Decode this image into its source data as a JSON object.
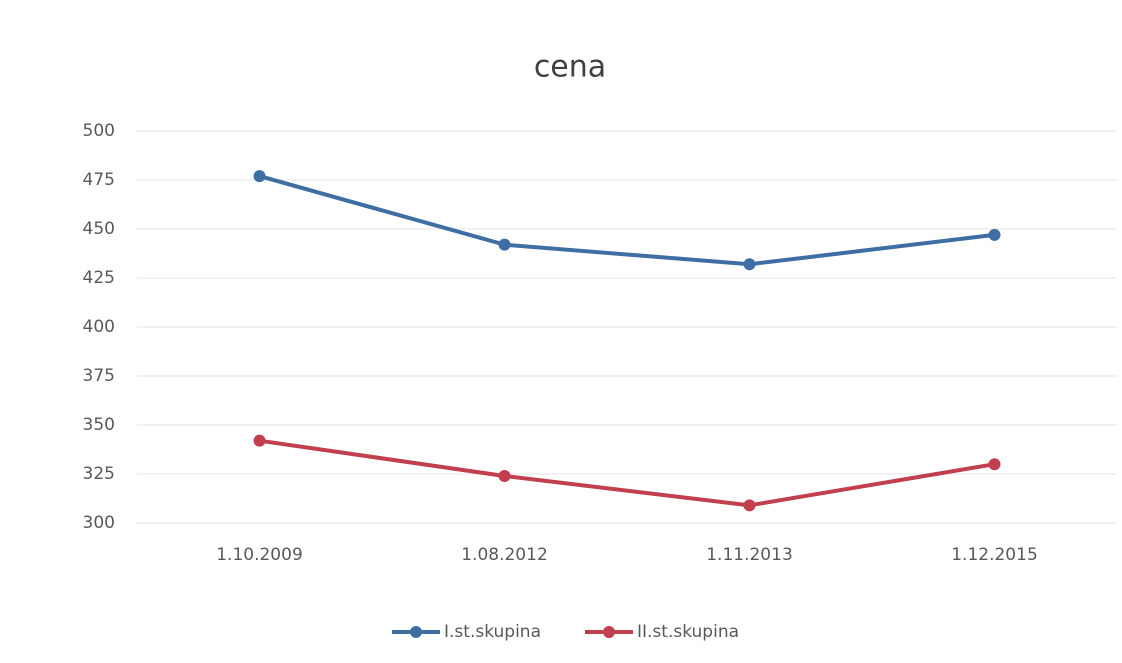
{
  "chart_data": {
    "type": "line",
    "title": "cena",
    "categories": [
      "1.10.2009",
      "1.08.2012",
      "1.11.2013",
      "1.12.2015"
    ],
    "series": [
      {
        "name": "I.st.skupina",
        "color": "#3e6ea3",
        "values": [
          477,
          442,
          432,
          447
        ]
      },
      {
        "name": "II.st.skupina",
        "color": "#c23f4e",
        "values": [
          342,
          324,
          309,
          330
        ]
      }
    ],
    "ylim": [
      300,
      500
    ],
    "yticks": [
      300,
      325,
      350,
      375,
      400,
      425,
      450,
      475,
      500
    ],
    "grid": true,
    "legend": "bottom"
  }
}
